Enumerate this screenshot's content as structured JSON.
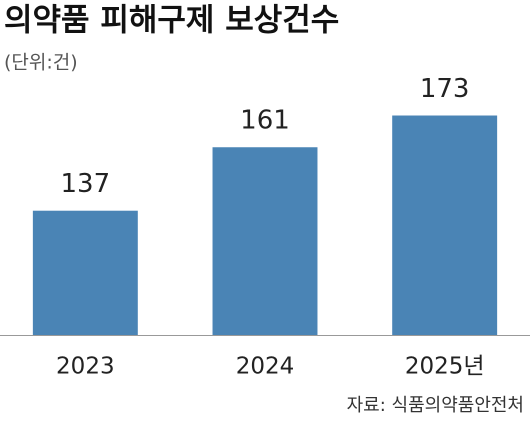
{
  "chart_data": {
    "type": "bar",
    "title": "의약품 피해구제 보상건수",
    "subtitle": "(단위:건)",
    "categories": [
      "2023",
      "2024",
      "2025년"
    ],
    "values": [
      137,
      161,
      173
    ],
    "color": "#4a84b5",
    "ylim": [
      90,
      180
    ],
    "source": "자료: 식품의약품안전처"
  }
}
